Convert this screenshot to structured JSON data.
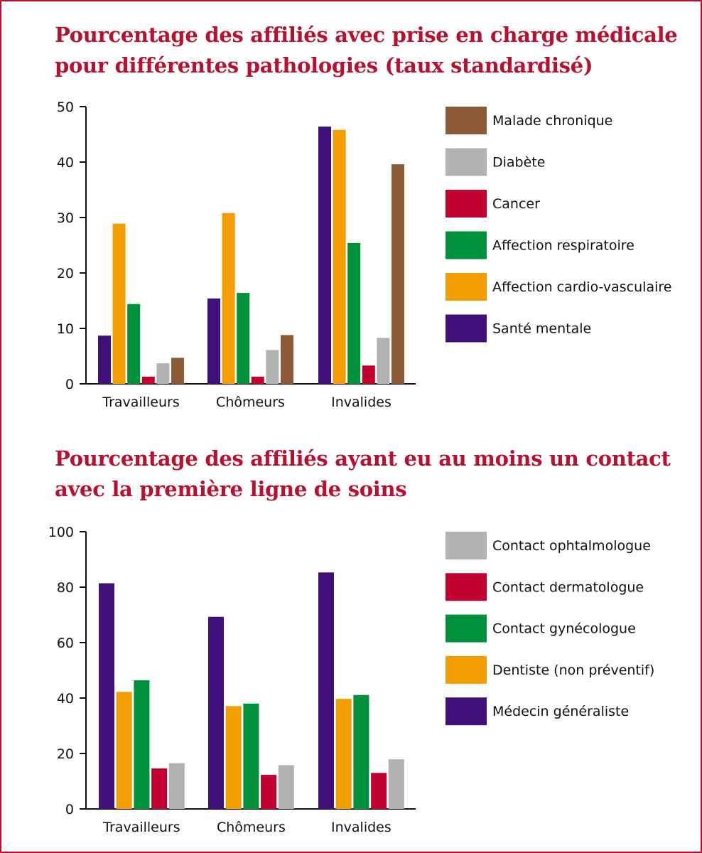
{
  "colors": {
    "title": "#b8102e",
    "border": "#b8102e",
    "sante_mentale": "#3f1178",
    "cardio": "#f29e00",
    "respiratoire": "#00913d",
    "cancer": "#c2002f",
    "diabete": "#b2b2b2",
    "chronique": "#8c5a34"
  },
  "chart_data": [
    {
      "type": "bar",
      "title": "Pourcentage des affiliés avec prise en charge médicale pour différentes pathologies (taux standardisé)",
      "xlabel": "",
      "ylabel": "",
      "categories": [
        "Travailleurs",
        "Chômeurs",
        "Invalides"
      ],
      "ylim": [
        0,
        50
      ],
      "yticks": [
        0,
        10,
        20,
        30,
        40,
        50
      ],
      "grid": false,
      "legend_position": "right",
      "series": [
        {
          "name": "Santé mentale",
          "color": "#3f1178",
          "values": [
            8.7,
            15.4,
            46.4
          ]
        },
        {
          "name": "Affection cardio-vasculaire",
          "color": "#f29e00",
          "values": [
            28.9,
            30.8,
            45.8
          ]
        },
        {
          "name": "Affection respiratoire",
          "color": "#00913d",
          "values": [
            14.4,
            16.4,
            25.4
          ]
        },
        {
          "name": "Cancer",
          "color": "#c2002f",
          "values": [
            1.3,
            1.3,
            3.3
          ]
        },
        {
          "name": "Diabète",
          "color": "#b2b2b2",
          "values": [
            3.7,
            6.1,
            8.3
          ]
        },
        {
          "name": "Malade chronique",
          "color": "#8c5a34",
          "values": [
            4.7,
            8.8,
            39.6
          ]
        }
      ]
    },
    {
      "type": "bar",
      "title": "Pourcentage des affiliés ayant eu au moins un contact avec la première ligne de soins",
      "xlabel": "",
      "ylabel": "",
      "categories": [
        "Travailleurs",
        "Chômeurs",
        "Invalides"
      ],
      "ylim": [
        0,
        100
      ],
      "yticks": [
        0,
        20,
        40,
        60,
        80,
        100
      ],
      "grid": false,
      "legend_position": "right",
      "series": [
        {
          "name": "Médecin généraliste",
          "color": "#3f1178",
          "values": [
            81.4,
            69.3,
            85.3
          ]
        },
        {
          "name": "Dentiste (non préventif)",
          "color": "#f29e00",
          "values": [
            42.2,
            37.1,
            39.7
          ]
        },
        {
          "name": "Contact gynécologue",
          "color": "#00913d",
          "values": [
            46.4,
            38.0,
            41.1
          ]
        },
        {
          "name": "Contact dermatologue",
          "color": "#c2002f",
          "values": [
            14.6,
            12.3,
            13.0
          ]
        },
        {
          "name": "Contact ophtalmologue",
          "color": "#b2b2b2",
          "values": [
            16.5,
            15.8,
            17.9
          ]
        }
      ]
    }
  ]
}
